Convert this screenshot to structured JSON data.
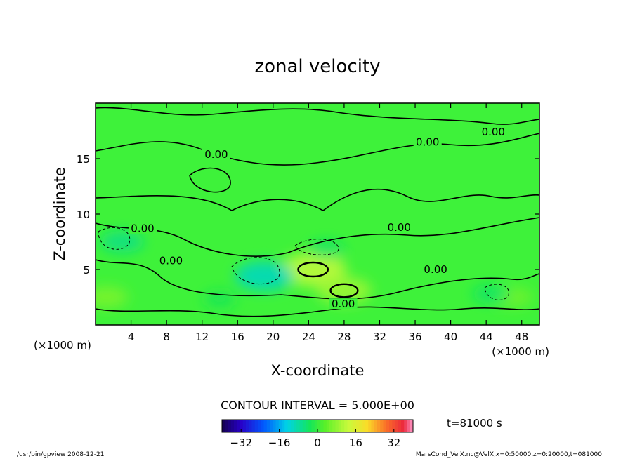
{
  "chart_data": {
    "type": "heatmap",
    "title": "zonal velocity",
    "xlabel": "X-coordinate",
    "ylabel": "Z-coordinate",
    "x_unit_left": "(×1000 m)",
    "x_unit_right": "(×1000 m)",
    "xlim": [
      0,
      50
    ],
    "ylim": [
      0,
      20
    ],
    "x_ticks": [
      4,
      8,
      12,
      16,
      20,
      24,
      28,
      32,
      36,
      40,
      44,
      48
    ],
    "y_ticks": [
      5,
      10,
      15
    ],
    "contour_interval_text": "CONTOUR INTERVAL = 5.000E+00",
    "contour_labels": [
      {
        "text": "0.00",
        "x": 44.8,
        "y": 17.2
      },
      {
        "text": "0.00",
        "x": 37.4,
        "y": 16.3
      },
      {
        "text": "0.00",
        "x": 13.6,
        "y": 15.2
      },
      {
        "text": "0.00",
        "x": 34.2,
        "y": 8.6
      },
      {
        "text": "0.00",
        "x": 5.3,
        "y": 8.5
      },
      {
        "text": "0.00",
        "x": 8.5,
        "y": 5.6
      },
      {
        "text": "0.00",
        "x": 38.3,
        "y": 4.8
      },
      {
        "text": "0.00",
        "x": 27.9,
        "y": 1.7
      }
    ],
    "colorbar": {
      "min": -40,
      "max": 40,
      "ticks": [
        -32,
        -16,
        0,
        16,
        32
      ]
    },
    "time_label": "t=81000 s",
    "field_extrema": [
      {
        "x": 24.5,
        "y": 5.0,
        "value": 12
      },
      {
        "x": 28.0,
        "y": 3.1,
        "value": 9
      },
      {
        "x": 19.0,
        "y": 4.4,
        "value": -10
      },
      {
        "x": 26.0,
        "y": 6.8,
        "value": -4
      },
      {
        "x": 3.0,
        "y": 7.5,
        "value": -6
      },
      {
        "x": 1.2,
        "y": 2.5,
        "value": 6
      },
      {
        "x": 47.0,
        "y": 2.5,
        "value": 5
      },
      {
        "x": 44.5,
        "y": 2.8,
        "value": -4
      },
      {
        "x": 14.0,
        "y": 2.3,
        "value": -3
      }
    ]
  },
  "footer": {
    "left": "/usr/bin/gpview   2008-12-21",
    "right": "MarsCond_VelX.nc@VelX,x=0:50000,z=0:20000,t=081000"
  },
  "colors": {
    "background_field": "#3ef23a",
    "contour": "#000000"
  }
}
